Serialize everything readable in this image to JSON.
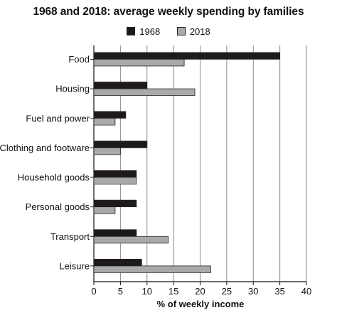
{
  "chart_data": {
    "type": "bar",
    "orientation": "horizontal",
    "title": "1968 and 2018: average weekly spending by families",
    "xlabel": "% of weekly income",
    "ylabel": "",
    "xlim": [
      0,
      40
    ],
    "xticks": [
      0,
      5,
      10,
      15,
      20,
      25,
      30,
      35,
      40
    ],
    "grid": "vertical",
    "legend_position": "top-center",
    "categories": [
      "Food",
      "Housing",
      "Fuel and power",
      "Clothing and footware",
      "Household goods",
      "Personal goods",
      "Transport",
      "Leisure"
    ],
    "series": [
      {
        "name": "1968",
        "color": "#1f1a1a",
        "values": [
          35,
          10,
          6,
          10,
          8,
          8,
          8,
          9
        ]
      },
      {
        "name": "2018",
        "color": "#a9a9a9",
        "values": [
          17,
          19,
          4,
          5,
          8,
          4,
          14,
          22
        ]
      }
    ]
  }
}
